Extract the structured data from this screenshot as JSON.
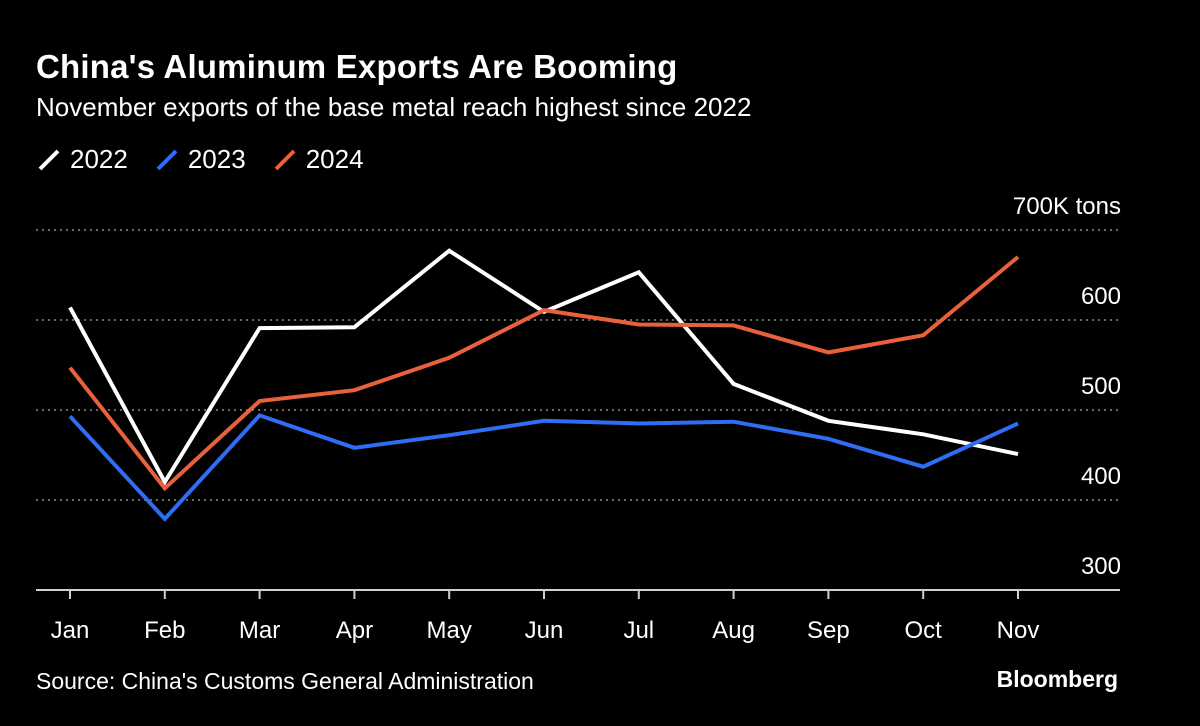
{
  "chart_data": {
    "type": "line",
    "title": "China's Aluminum Exports Are Booming",
    "subtitle": "November exports of the base metal reach highest since 2022",
    "xlabel": "",
    "ylabel": "",
    "y_unit_label": "700K tons",
    "categories": [
      "Jan",
      "Feb",
      "Mar",
      "Apr",
      "May",
      "Jun",
      "Jul",
      "Aug",
      "Sep",
      "Oct",
      "Nov"
    ],
    "ylim": [
      300,
      700
    ],
    "yticks": [
      300,
      400,
      500,
      600,
      700
    ],
    "ytick_labels": [
      "300",
      "400",
      "500",
      "600",
      "700K tons"
    ],
    "gridlines": [
      400,
      500,
      600,
      700
    ],
    "series": [
      {
        "name": "2022",
        "color": "#ffffff",
        "values": [
          614,
          420,
          591,
          592,
          677,
          609,
          653,
          529,
          488,
          473,
          451
        ]
      },
      {
        "name": "2023",
        "color": "#2f6df5",
        "values": [
          493,
          379,
          494,
          458,
          472,
          488,
          485,
          487,
          468,
          437,
          485
        ]
      },
      {
        "name": "2024",
        "color": "#e8603c",
        "values": [
          547,
          413,
          510,
          522,
          558,
          611,
          595,
          594,
          564,
          583,
          670
        ]
      }
    ]
  },
  "footer": {
    "source": "Source: China's Customs General Administration",
    "brand": "Bloomberg"
  }
}
